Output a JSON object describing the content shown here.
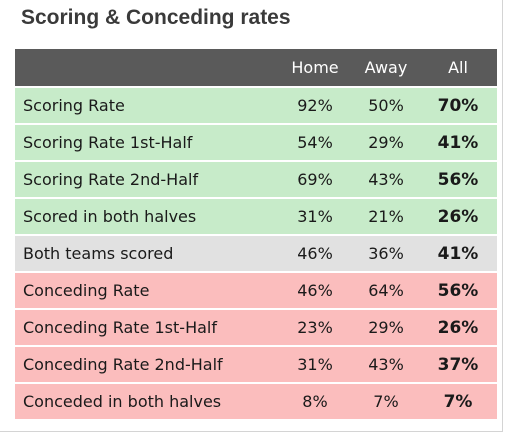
{
  "title": "Scoring & Conceding rates",
  "header": {
    "label": "",
    "home": "Home",
    "away": "Away",
    "all": "All"
  },
  "rows": [
    {
      "label": "Scoring Rate",
      "home": "92%",
      "away": "50%",
      "all": "70%",
      "group": "scoring"
    },
    {
      "label": "Scoring Rate 1st-Half",
      "home": "54%",
      "away": "29%",
      "all": "41%",
      "group": "scoring"
    },
    {
      "label": "Scoring Rate 2nd-Half",
      "home": "69%",
      "away": "43%",
      "all": "56%",
      "group": "scoring"
    },
    {
      "label": "Scored in both halves",
      "home": "31%",
      "away": "21%",
      "all": "26%",
      "group": "scoring"
    },
    {
      "label": "Both teams scored",
      "home": "46%",
      "away": "36%",
      "all": "41%",
      "group": "both"
    },
    {
      "label": "Conceding Rate",
      "home": "46%",
      "away": "64%",
      "all": "56%",
      "group": "conceding"
    },
    {
      "label": "Conceding Rate 1st-Half",
      "home": "23%",
      "away": "29%",
      "all": "26%",
      "group": "conceding"
    },
    {
      "label": "Conceding Rate 2nd-Half",
      "home": "31%",
      "away": "43%",
      "all": "37%",
      "group": "conceding"
    },
    {
      "label": "Conceded in both halves",
      "home": "8%",
      "away": "7%",
      "all": "7%",
      "group": "conceding"
    }
  ],
  "colors": {
    "header_bg": "#5a5a5a",
    "scoring_bg": "#c7ebc9",
    "both_bg": "#e1e1e1",
    "conceding_bg": "#fbbdbd"
  }
}
